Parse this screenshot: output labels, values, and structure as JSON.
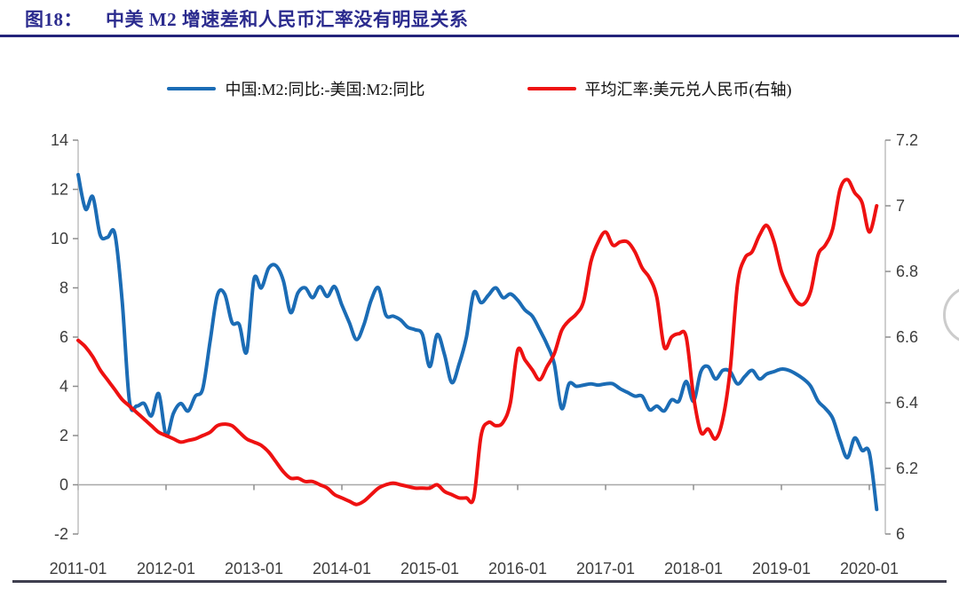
{
  "figure": {
    "label": "图18：",
    "title": "中美 M2 增速差和人民币汇率没有明显关系"
  },
  "legend": [
    {
      "id": "m2-diff",
      "label": "中国:M2:同比:-美国:M2:同比",
      "color": "#1b6cb5"
    },
    {
      "id": "usdcny",
      "label": "平均汇率:美元兑人民币(右轴)",
      "color": "#ee1111"
    }
  ],
  "colors": {
    "title_navy": "#2b2b8e",
    "blue_series": "#1b6cb5",
    "red_series": "#ee1111",
    "axis_line": "#bfbfbf",
    "zero_line": "#a8a8a8"
  },
  "chart_data": {
    "type": "line",
    "x_interval": "monthly",
    "x_start": "2011-01",
    "x_end": "2020-02",
    "x_tick_labels": [
      "2011-01",
      "2012-01",
      "2013-01",
      "2014-01",
      "2015-01",
      "2016-01",
      "2017-01",
      "2018-01",
      "2019-01",
      "2020-01"
    ],
    "left_axis": {
      "min": -2,
      "max": 14,
      "ticks": [
        14,
        12,
        10,
        8,
        6,
        4,
        2,
        0,
        -2
      ]
    },
    "right_axis": {
      "min": 6,
      "max": 7.2,
      "ticks": [
        7.2,
        7,
        6.8,
        6.6,
        6.4,
        6.2,
        6
      ]
    },
    "gridline_at_left_value": 0,
    "legend_position": "top-center",
    "series": [
      {
        "id": "m2-diff",
        "name": "中国:M2:同比:-美国:M2:同比",
        "axis": "left",
        "color": "#1b6cb5",
        "values": [
          12.6,
          11.2,
          11.7,
          10.15,
          10.05,
          10.2,
          7.5,
          3.4,
          3.2,
          3.3,
          2.8,
          3.7,
          2.0,
          2.9,
          3.3,
          3.0,
          3.6,
          3.9,
          5.8,
          7.7,
          7.75,
          6.6,
          6.5,
          5.4,
          8.35,
          8.0,
          8.8,
          8.9,
          8.3,
          7.0,
          7.8,
          8.0,
          7.6,
          8.05,
          7.65,
          8.05,
          7.3,
          6.6,
          5.9,
          6.5,
          7.5,
          8.0,
          6.9,
          6.85,
          6.7,
          6.4,
          6.3,
          6.1,
          4.8,
          6.1,
          5.3,
          4.15,
          4.9,
          6.0,
          7.8,
          7.4,
          7.7,
          8.0,
          7.6,
          7.75,
          7.5,
          7.1,
          6.85,
          6.3,
          5.7,
          4.9,
          3.1,
          4.1,
          4.0,
          4.05,
          4.1,
          4.05,
          4.1,
          4.1,
          3.9,
          3.75,
          3.6,
          3.6,
          3.05,
          3.2,
          3.0,
          3.45,
          3.4,
          4.2,
          3.4,
          4.6,
          4.8,
          4.3,
          4.65,
          4.6,
          4.1,
          4.4,
          4.65,
          4.3,
          4.5,
          4.6,
          4.7,
          4.65,
          4.5,
          4.3,
          4.0,
          3.4,
          3.1,
          2.7,
          1.8,
          1.1,
          1.9,
          1.4,
          1.3,
          -1.0
        ]
      },
      {
        "id": "usdcny",
        "name": "平均汇率:美元兑人民币(右轴)",
        "axis": "right",
        "color": "#ee1111",
        "values": [
          6.59,
          6.57,
          6.54,
          6.5,
          6.47,
          6.44,
          6.41,
          6.39,
          6.37,
          6.35,
          6.33,
          6.31,
          6.3,
          6.29,
          6.28,
          6.285,
          6.29,
          6.3,
          6.31,
          6.33,
          6.335,
          6.33,
          6.31,
          6.29,
          6.28,
          6.27,
          6.25,
          6.22,
          6.19,
          6.17,
          6.17,
          6.16,
          6.16,
          6.15,
          6.14,
          6.12,
          6.11,
          6.1,
          6.09,
          6.1,
          6.12,
          6.14,
          6.15,
          6.155,
          6.15,
          6.145,
          6.14,
          6.14,
          6.14,
          6.15,
          6.13,
          6.12,
          6.11,
          6.11,
          6.11,
          6.3,
          6.34,
          6.33,
          6.34,
          6.4,
          6.56,
          6.53,
          6.5,
          6.47,
          6.51,
          6.55,
          6.62,
          6.65,
          6.67,
          6.71,
          6.83,
          6.89,
          6.92,
          6.88,
          6.89,
          6.89,
          6.86,
          6.81,
          6.78,
          6.72,
          6.57,
          6.6,
          6.61,
          6.6,
          6.42,
          6.31,
          6.32,
          6.29,
          6.35,
          6.5,
          6.76,
          6.84,
          6.86,
          6.91,
          6.94,
          6.89,
          6.8,
          6.75,
          6.71,
          6.7,
          6.74,
          6.85,
          6.88,
          6.93,
          7.05,
          7.08,
          7.04,
          7.01,
          6.92,
          7.0
        ]
      }
    ]
  }
}
